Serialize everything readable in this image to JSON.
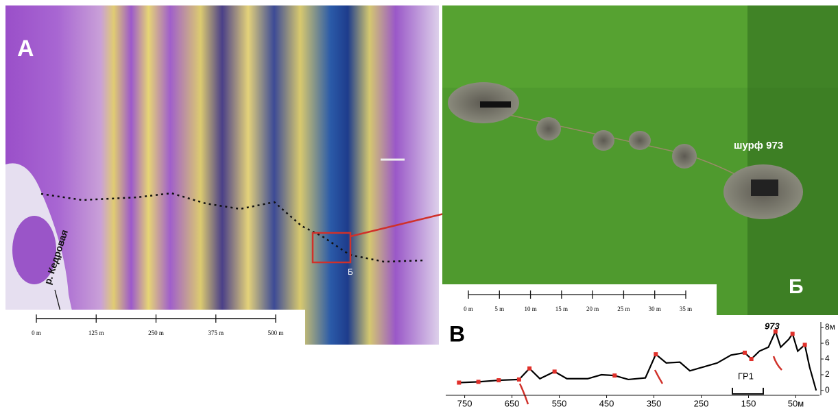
{
  "panel_a": {
    "label": "А",
    "river": "р. Кедровая",
    "inset_label": "Б",
    "scale": [
      "0 m",
      "125 m",
      "250 m",
      "375 m",
      "500 m"
    ]
  },
  "panel_b": {
    "label": "Б",
    "pit": "шурф 973",
    "scale": [
      "0 m",
      "5 m",
      "10 m",
      "15 m",
      "20 m",
      "25 m",
      "30 m",
      "35 m"
    ]
  },
  "chart_data": {
    "type": "line",
    "label": "В",
    "annotations": [
      "973",
      "ГР1"
    ],
    "x": [
      762,
      721,
      678,
      635,
      613,
      591,
      560,
      534,
      490,
      461,
      433,
      404,
      368,
      346,
      324,
      295,
      274,
      245,
      216,
      187,
      158,
      144,
      127,
      108,
      93,
      82,
      65,
      57,
      46,
      31,
      21,
      7
    ],
    "values": [
      1.0,
      1.1,
      1.3,
      1.4,
      2.8,
      1.5,
      2.4,
      1.5,
      1.5,
      2.0,
      1.9,
      1.4,
      1.6,
      4.6,
      3.5,
      3.6,
      2.5,
      3.0,
      3.5,
      4.5,
      4.8,
      4.0,
      5.0,
      5.5,
      7.5,
      5.5,
      6.5,
      7.2,
      5.0,
      5.8,
      3.0,
      0
    ],
    "color": "#000000",
    "pits": {
      "color": "#e0302a",
      "x": [
        762,
        721,
        678,
        635,
        613,
        560,
        433,
        346,
        158,
        144,
        93,
        57,
        31
      ],
      "values": [
        1.0,
        1.1,
        1.3,
        1.4,
        2.8,
        2.4,
        1.9,
        4.6,
        4.8,
        4.0,
        7.5,
        7.2,
        5.8
      ]
    },
    "xlim": [
      790,
      0
    ],
    "ylim": [
      0,
      8.7
    ],
    "xticks": [
      750,
      650,
      550,
      450,
      350,
      250,
      150,
      {
        "value": 50,
        "label": "50м"
      }
    ],
    "yticks": [
      0,
      2,
      4,
      6,
      {
        "value": 8,
        "label": "8м"
      }
    ]
  }
}
